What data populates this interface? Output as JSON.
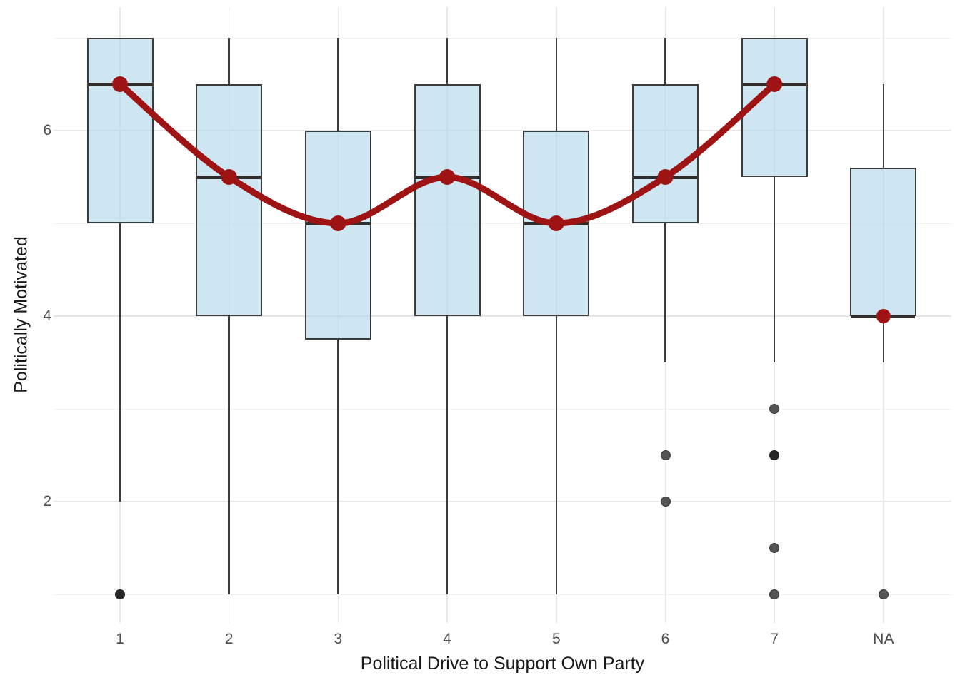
{
  "chart_data": {
    "type": "box",
    "title": "",
    "xlabel": "Political Drive to Support Own Party",
    "ylabel": "Politically Motivated",
    "categories": [
      "1",
      "2",
      "3",
      "4",
      "5",
      "6",
      "7",
      "NA"
    ],
    "y_axis": {
      "tick_labels": [
        "6",
        "4",
        "2"
      ],
      "major_breaks": [
        6,
        4,
        2
      ],
      "minor_breaks": [
        7,
        5,
        3,
        1
      ],
      "shown_range": [
        0.7,
        7.3
      ],
      "grid": "on"
    },
    "boxes": [
      {
        "category": "1",
        "q1": 5.0,
        "median": 6.5,
        "q3": 7.0,
        "whisker_low": 2.0,
        "whisker_high": 7.0,
        "outliers": [
          {
            "value": 1.0,
            "dark": true
          }
        ]
      },
      {
        "category": "2",
        "q1": 4.0,
        "median": 5.5,
        "q3": 6.5,
        "whisker_low": 1.0,
        "whisker_high": 7.0,
        "outliers": []
      },
      {
        "category": "3",
        "q1": 3.75,
        "median": 5.0,
        "q3": 6.0,
        "whisker_low": 1.0,
        "whisker_high": 7.0,
        "outliers": []
      },
      {
        "category": "4",
        "q1": 4.0,
        "median": 5.5,
        "q3": 6.5,
        "whisker_low": 1.0,
        "whisker_high": 7.0,
        "outliers": []
      },
      {
        "category": "5",
        "q1": 4.0,
        "median": 5.0,
        "q3": 6.0,
        "whisker_low": 1.0,
        "whisker_high": 7.0,
        "outliers": []
      },
      {
        "category": "6",
        "q1": 5.0,
        "median": 5.5,
        "q3": 6.5,
        "whisker_low": 3.5,
        "whisker_high": 7.0,
        "outliers": [
          {
            "value": 2.5,
            "dark": false
          },
          {
            "value": 2.0,
            "dark": false
          }
        ]
      },
      {
        "category": "7",
        "q1": 5.5,
        "median": 6.5,
        "q3": 7.0,
        "whisker_low": 3.5,
        "whisker_high": 7.0,
        "outliers": [
          {
            "value": 3.0,
            "dark": false
          },
          {
            "value": 2.5,
            "dark": true
          },
          {
            "value": 1.5,
            "dark": false
          },
          {
            "value": 1.0,
            "dark": false
          }
        ]
      },
      {
        "category": "NA",
        "q1": 4.0,
        "median": 4.0,
        "q3": 5.6,
        "whisker_low": 3.5,
        "whisker_high": 6.5,
        "outliers": [
          {
            "value": 1.0,
            "dark": false
          }
        ]
      }
    ],
    "trend_line": {
      "x": [
        "1",
        "2",
        "3",
        "4",
        "5",
        "6",
        "7"
      ],
      "y": [
        6.5,
        5.5,
        5.0,
        5.5,
        5.0,
        5.5,
        6.5
      ]
    },
    "isolated_points": [
      {
        "x": "NA",
        "y": 4.0
      }
    ],
    "legend": "none",
    "colors": {
      "box_fill": "rgba(175,215,233,0.62)",
      "box_border": "#3B3B3B",
      "median": "#2E2E2E",
      "whisker": "#3B3B3B",
      "outlier": "#545454",
      "outlier_dark": "#262626",
      "trend": "#9E1313",
      "grid_major": "#E5E5E5",
      "grid_minor": "#F1F1F1",
      "grid_vertical": "#E8E8E8",
      "tick_label": "#4D4D4D",
      "axis_title": "#1A1A1A"
    }
  }
}
